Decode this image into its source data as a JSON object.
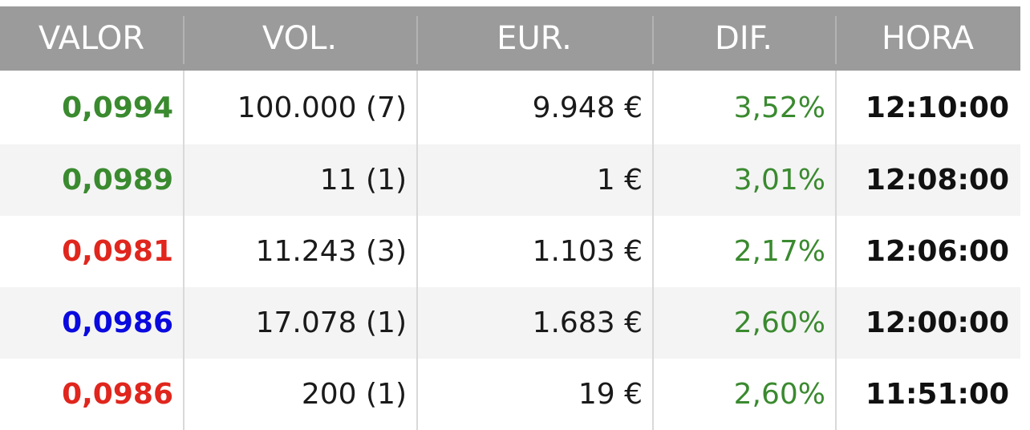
{
  "colors": {
    "header_bg": "#9b9b9b",
    "up": "#3a8a2f",
    "down": "#e0261d",
    "neutral": "#0a0adf",
    "row_alt": "#f4f4f4"
  },
  "table": {
    "headers": [
      "VALOR",
      "VOL.",
      "EUR.",
      "DIF.",
      "HORA"
    ],
    "rows": [
      {
        "valor": "0,0994",
        "valor_color": "#3a8a2f",
        "vol": "100.000 (7)",
        "eur": "9.948 €",
        "dif": "3,52%",
        "hora": "12:10:00"
      },
      {
        "valor": "0,0989",
        "valor_color": "#3a8a2f",
        "vol": "11 (1)",
        "eur": "1 €",
        "dif": "3,01%",
        "hora": "12:08:00"
      },
      {
        "valor": "0,0981",
        "valor_color": "#e0261d",
        "vol": "11.243 (3)",
        "eur": "1.103 €",
        "dif": "2,17%",
        "hora": "12:06:00"
      },
      {
        "valor": "0,0986",
        "valor_color": "#0a0adf",
        "vol": "17.078 (1)",
        "eur": "1.683 €",
        "dif": "2,60%",
        "hora": "12:00:00"
      },
      {
        "valor": "0,0986",
        "valor_color": "#e0261d",
        "vol": "200 (1)",
        "eur": "19 €",
        "dif": "2,60%",
        "hora": "11:51:00"
      }
    ]
  }
}
